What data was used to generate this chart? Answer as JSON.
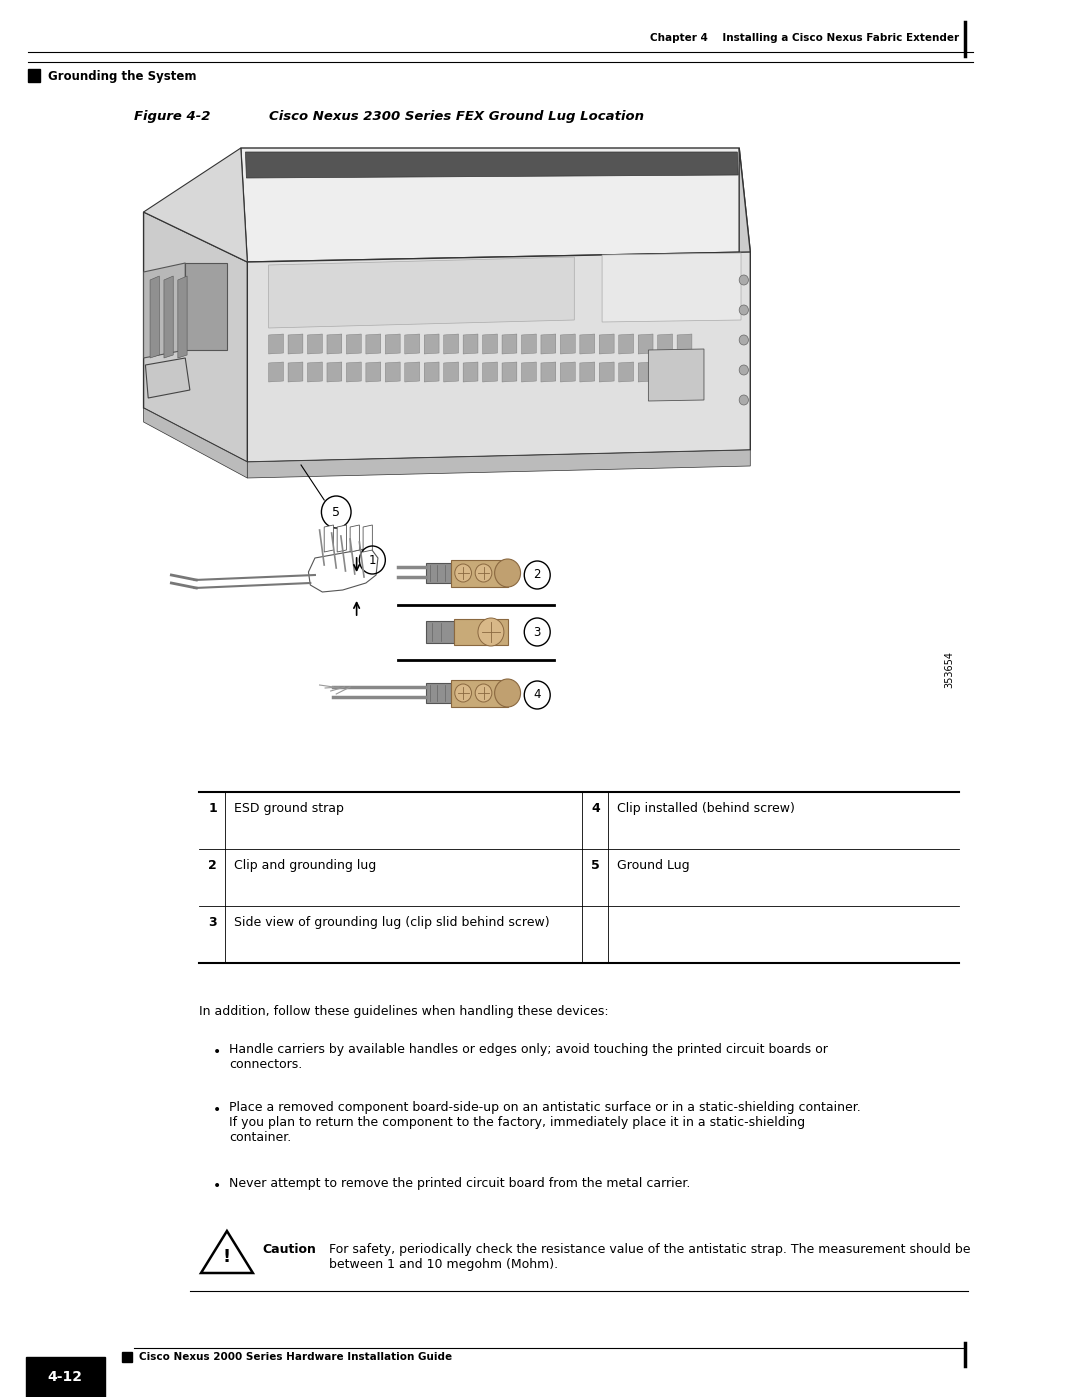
{
  "page_width": 10.8,
  "page_height": 13.97,
  "bg_color": "#ffffff",
  "header_chapter_text": "Chapter 4    Installing a Cisco Nexus Fabric Extender",
  "header_section_text": "Grounding the System",
  "figure_label": "Figure 4-2",
  "figure_title": "Cisco Nexus 2300 Series FEX Ground Lug Location",
  "table_rows": [
    {
      "num": "1",
      "desc": "ESD ground strap",
      "num2": "4",
      "desc2": "Clip installed (behind screw)"
    },
    {
      "num": "2",
      "desc": "Clip and grounding lug",
      "num2": "5",
      "desc2": "Ground Lug"
    },
    {
      "num": "3",
      "desc": "Side view of grounding lug (clip slid behind screw)",
      "num2": "",
      "desc2": ""
    }
  ],
  "body_text": "In addition, follow these guidelines when handling these devices:",
  "bullets": [
    "Handle carriers by available handles or edges only; avoid touching the printed circuit boards or connectors.",
    "Place a removed component board-side-up on an antistatic surface or in a static-shielding container. If you plan to return the component to the factory, immediately place it in a static-shielding container.",
    "Never attempt to remove the printed circuit board from the metal carrier."
  ],
  "caution_label": "Caution",
  "caution_text": "For safety, periodically check the resistance value of the antistatic strap. The measurement should be between 1 and 10 megohm (Mohm).",
  "footer_text": "Cisco Nexus 2000 Series Hardware Installation Guide",
  "footer_page": "4-12",
  "sidebar_code": "353654"
}
